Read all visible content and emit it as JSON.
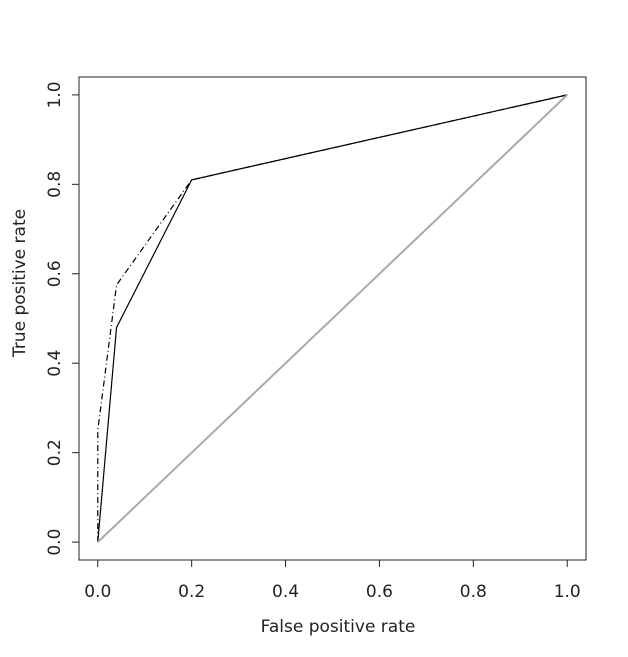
{
  "chart_data": {
    "type": "line",
    "xlabel": "False positive rate",
    "ylabel": "True positive rate",
    "xlim": [
      -0.04,
      1.04
    ],
    "ylim": [
      -0.04,
      1.04
    ],
    "xticks": [
      {
        "value": 0,
        "label": "0.0"
      },
      0.2,
      0.4,
      0.6,
      0.8,
      {
        "value": 1,
        "label": "1.0"
      }
    ],
    "yticks": [
      {
        "value": 0,
        "label": "0.0"
      },
      0.2,
      0.4,
      0.6,
      0.8,
      {
        "value": 1,
        "label": "1.0"
      }
    ],
    "series": [
      {
        "color": "#000000",
        "linestyle": "solid",
        "x": [
          0,
          0.04,
          0.2,
          1
        ],
        "values": [
          0,
          0.48,
          0.81,
          1
        ]
      },
      {
        "color": "#000000",
        "linestyle": "dotdash",
        "x": [
          0,
          0,
          0.04,
          0.2,
          1
        ],
        "values": [
          0,
          0.25,
          0.575,
          0.81,
          1
        ]
      },
      {
        "color": "#aaaaaa",
        "linestyle": "solid",
        "x": [
          0,
          1
        ],
        "values": [
          0,
          1
        ]
      }
    ]
  }
}
